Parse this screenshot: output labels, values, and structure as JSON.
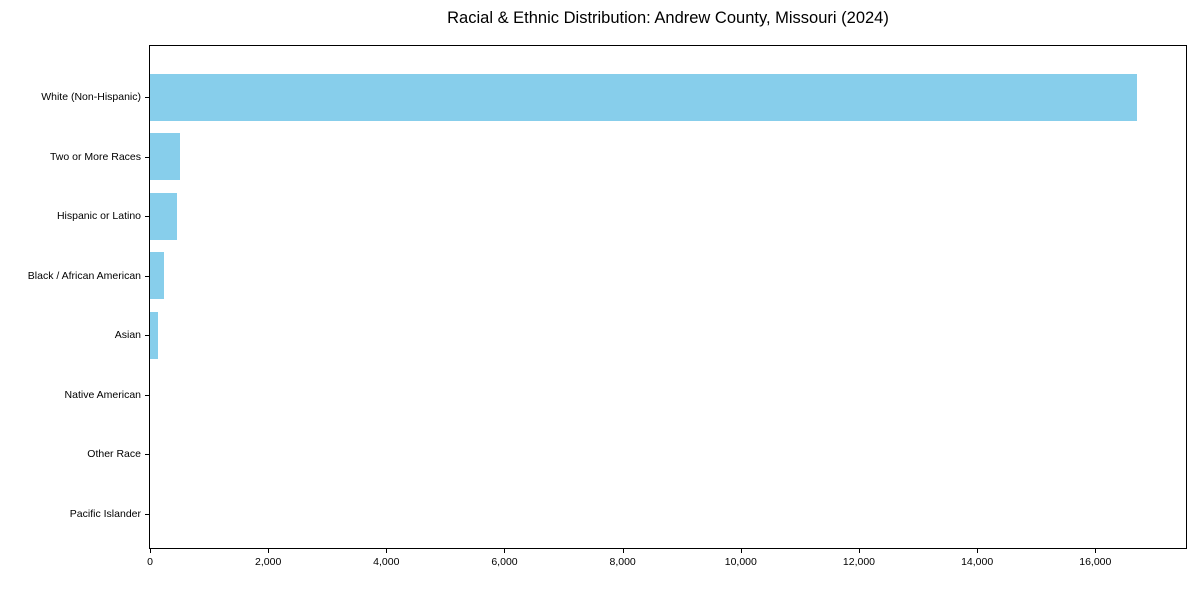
{
  "chart_data": {
    "type": "bar",
    "orientation": "horizontal",
    "title": "Racial & Ethnic Distribution: Andrew County, Missouri (2024)",
    "categories": [
      "White (Non-Hispanic)",
      "Two or More Races",
      "Hispanic or Latino",
      "Black / African American",
      "Asian",
      "Native American",
      "Other Race",
      "Pacific Islander"
    ],
    "values": [
      16700,
      500,
      460,
      240,
      130,
      0,
      0,
      0
    ],
    "bar_color": "#87CEEB",
    "xlabel": "",
    "ylabel": "",
    "xlim": [
      0,
      17535
    ],
    "x_ticks": [
      0,
      2000,
      4000,
      6000,
      8000,
      10000,
      12000,
      14000,
      16000
    ],
    "x_tick_labels": [
      "0",
      "2,000",
      "4,000",
      "6,000",
      "8,000",
      "10,000",
      "12,000",
      "14,000",
      "16,000"
    ],
    "grid": false,
    "legend": "none",
    "background_color": "#ffffff",
    "axis_color": "#000000"
  }
}
